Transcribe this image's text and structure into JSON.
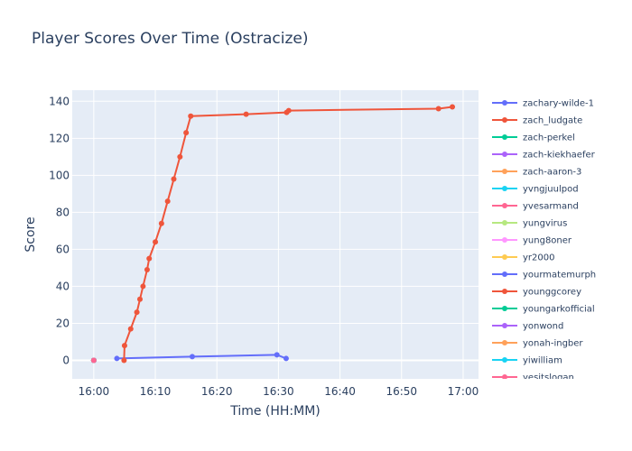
{
  "chart_data": {
    "type": "line",
    "title": "Player Scores Over Time (Ostracize)",
    "xlabel": "Time (HH:MM)",
    "ylabel": "Score",
    "x_range_minutes": [
      -3.5,
      62.5
    ],
    "ylim": [
      -10,
      146
    ],
    "x_ticks": [
      {
        "label": "16:00",
        "value": 0
      },
      {
        "label": "16:10",
        "value": 10
      },
      {
        "label": "16:20",
        "value": 20
      },
      {
        "label": "16:30",
        "value": 30
      },
      {
        "label": "16:40",
        "value": 40
      },
      {
        "label": "16:50",
        "value": 50
      },
      {
        "label": "17:00",
        "value": 60
      }
    ],
    "y_ticks": [
      0,
      20,
      40,
      60,
      80,
      100,
      120,
      140
    ],
    "grid": true,
    "legend_position": "right",
    "series": [
      {
        "name": "zachary-wilde-1",
        "color": "#636efa",
        "points": [
          [
            "16:03:45",
            1
          ],
          [
            "16:16:00",
            2
          ],
          [
            "16:29:45",
            3
          ],
          [
            "16:31:15",
            1
          ]
        ]
      },
      {
        "name": "zach_ludgate",
        "color": "#ef553b",
        "points": [
          [
            "16:04:55",
            0
          ],
          [
            "16:05:00",
            8
          ],
          [
            "16:06:00",
            17
          ],
          [
            "16:07:00",
            26
          ],
          [
            "16:07:30",
            33
          ],
          [
            "16:08:00",
            40
          ],
          [
            "16:08:40",
            49
          ],
          [
            "16:09:00",
            55
          ],
          [
            "16:10:00",
            64
          ],
          [
            "16:11:00",
            74
          ],
          [
            "16:12:00",
            86
          ],
          [
            "16:13:00",
            98
          ],
          [
            "16:14:00",
            110
          ],
          [
            "16:15:00",
            123
          ],
          [
            "16:15:45",
            132
          ],
          [
            "16:24:45",
            133
          ],
          [
            "16:31:20",
            134
          ],
          [
            "16:31:40",
            135
          ],
          [
            "16:56:00",
            136
          ],
          [
            "16:58:15",
            137
          ]
        ]
      },
      {
        "name": "zach-perkel",
        "color": "#00cc96",
        "points": [
          [
            "16:00:00",
            0
          ]
        ]
      },
      {
        "name": "zach-kiekhaefer",
        "color": "#ab63fa",
        "points": [
          [
            "16:00:00",
            0
          ]
        ]
      },
      {
        "name": "zach-aaron-3",
        "color": "#ffa15a",
        "points": [
          [
            "16:00:00",
            0
          ]
        ]
      },
      {
        "name": "yvngjuulpod",
        "color": "#19d3f3",
        "points": [
          [
            "16:00:00",
            0
          ]
        ]
      },
      {
        "name": "yvesarmand",
        "color": "#ff6692",
        "points": [
          [
            "16:00:00",
            0
          ]
        ]
      },
      {
        "name": "yungvirus",
        "color": "#b6e880",
        "points": [
          [
            "16:00:00",
            0
          ]
        ]
      },
      {
        "name": "yung8oner",
        "color": "#ff97ff",
        "points": [
          [
            "16:00:00",
            0
          ]
        ]
      },
      {
        "name": "yr2000",
        "color": "#fecb52",
        "points": [
          [
            "16:00:00",
            0
          ]
        ]
      },
      {
        "name": "yourmatemurph",
        "color": "#636efa",
        "points": [
          [
            "16:00:00",
            0
          ]
        ]
      },
      {
        "name": "younggcorey",
        "color": "#ef553b",
        "points": [
          [
            "16:00:00",
            0
          ]
        ]
      },
      {
        "name": "youngarkofficial",
        "color": "#00cc96",
        "points": [
          [
            "16:00:00",
            0
          ]
        ]
      },
      {
        "name": "yonwond",
        "color": "#ab63fa",
        "points": [
          [
            "16:00:00",
            0
          ]
        ]
      },
      {
        "name": "yonah-ingber",
        "color": "#ffa15a",
        "points": [
          [
            "16:00:00",
            0
          ]
        ]
      },
      {
        "name": "yiwilliam",
        "color": "#19d3f3",
        "points": [
          [
            "16:00:00",
            0
          ]
        ]
      },
      {
        "name": "yesitslogan",
        "color": "#ff6692",
        "points": [
          [
            "16:00:00",
            0
          ]
        ]
      }
    ]
  }
}
